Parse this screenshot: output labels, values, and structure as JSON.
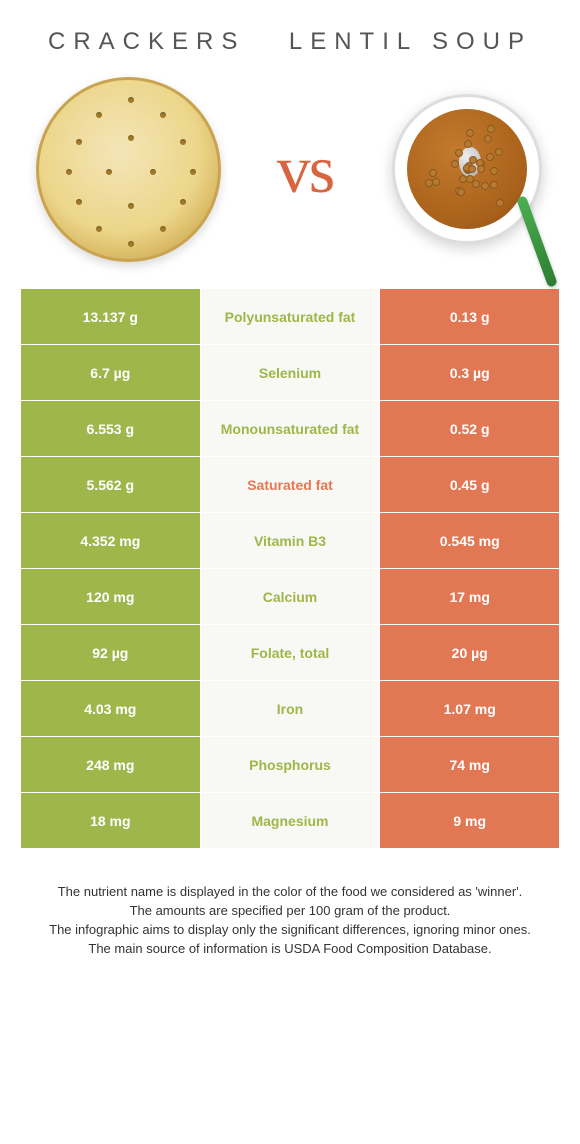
{
  "header": {
    "left_title": "Crackers",
    "right_title": "Lentil Soup",
    "vs_label": "vs"
  },
  "colors": {
    "left": "#9fb64a",
    "right": "#e17853",
    "mid_bg": "#f8f8f5"
  },
  "rows": [
    {
      "left": "13.137 g",
      "label": "Polyunsaturated fat",
      "right": "0.13 g",
      "winner": "left"
    },
    {
      "left": "6.7 µg",
      "label": "Selenium",
      "right": "0.3 µg",
      "winner": "left"
    },
    {
      "left": "6.553 g",
      "label": "Monounsaturated fat",
      "right": "0.52 g",
      "winner": "left"
    },
    {
      "left": "5.562 g",
      "label": "Saturated fat",
      "right": "0.45 g",
      "winner": "right"
    },
    {
      "left": "4.352 mg",
      "label": "Vitamin B3",
      "right": "0.545 mg",
      "winner": "left"
    },
    {
      "left": "120 mg",
      "label": "Calcium",
      "right": "17 mg",
      "winner": "left"
    },
    {
      "left": "92 µg",
      "label": "Folate, total",
      "right": "20 µg",
      "winner": "left"
    },
    {
      "left": "4.03 mg",
      "label": "Iron",
      "right": "1.07 mg",
      "winner": "left"
    },
    {
      "left": "248 mg",
      "label": "Phosphorus",
      "right": "74 mg",
      "winner": "left"
    },
    {
      "left": "18 mg",
      "label": "Magnesium",
      "right": "9 mg",
      "winner": "left"
    }
  ],
  "footer": {
    "line1": "The nutrient name is displayed in the color of the food we considered as 'winner'.",
    "line2": "The amounts are specified per 100 gram of the product.",
    "line3": "The infographic aims to display only the significant differences, ignoring minor ones.",
    "line4": "The main source of information is USDA Food Composition Database."
  }
}
